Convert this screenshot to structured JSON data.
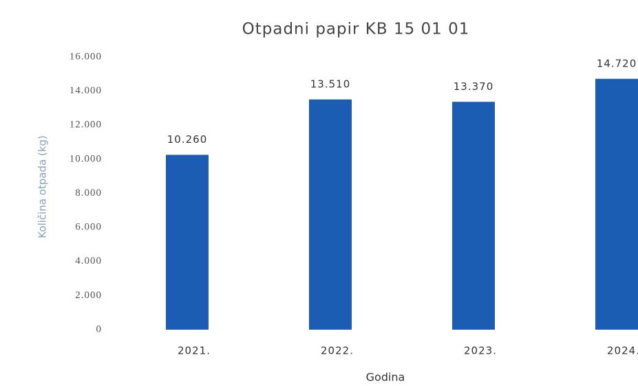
{
  "chart_data": {
    "type": "bar",
    "title": "Otpadni papir KB 15 01 01",
    "y_label": "Količina otpada (kg)",
    "x_label": "Godina",
    "categories": [
      "2021.",
      "2022.",
      "2023.",
      "2024."
    ],
    "values": [
      10260,
      13510,
      13370,
      14720
    ],
    "value_labels": [
      "10.260",
      "13.510",
      "13.370",
      "14.720"
    ],
    "color": "#1a5db3",
    "ylim": [
      0,
      16000
    ],
    "yticks": [
      0,
      {
        "value": 2000,
        "label": "2.000"
      },
      {
        "value": 4000,
        "label": "4.000"
      },
      {
        "value": 6000,
        "label": "6.000"
      },
      {
        "value": 8000,
        "label": "8.000"
      },
      {
        "value": 10000,
        "label": "10.000"
      },
      {
        "value": 12000,
        "label": "12.000"
      },
      {
        "value": 14000,
        "label": "14.000"
      },
      {
        "value": 16000,
        "label": "16.000"
      }
    ],
    "grid": false
  }
}
